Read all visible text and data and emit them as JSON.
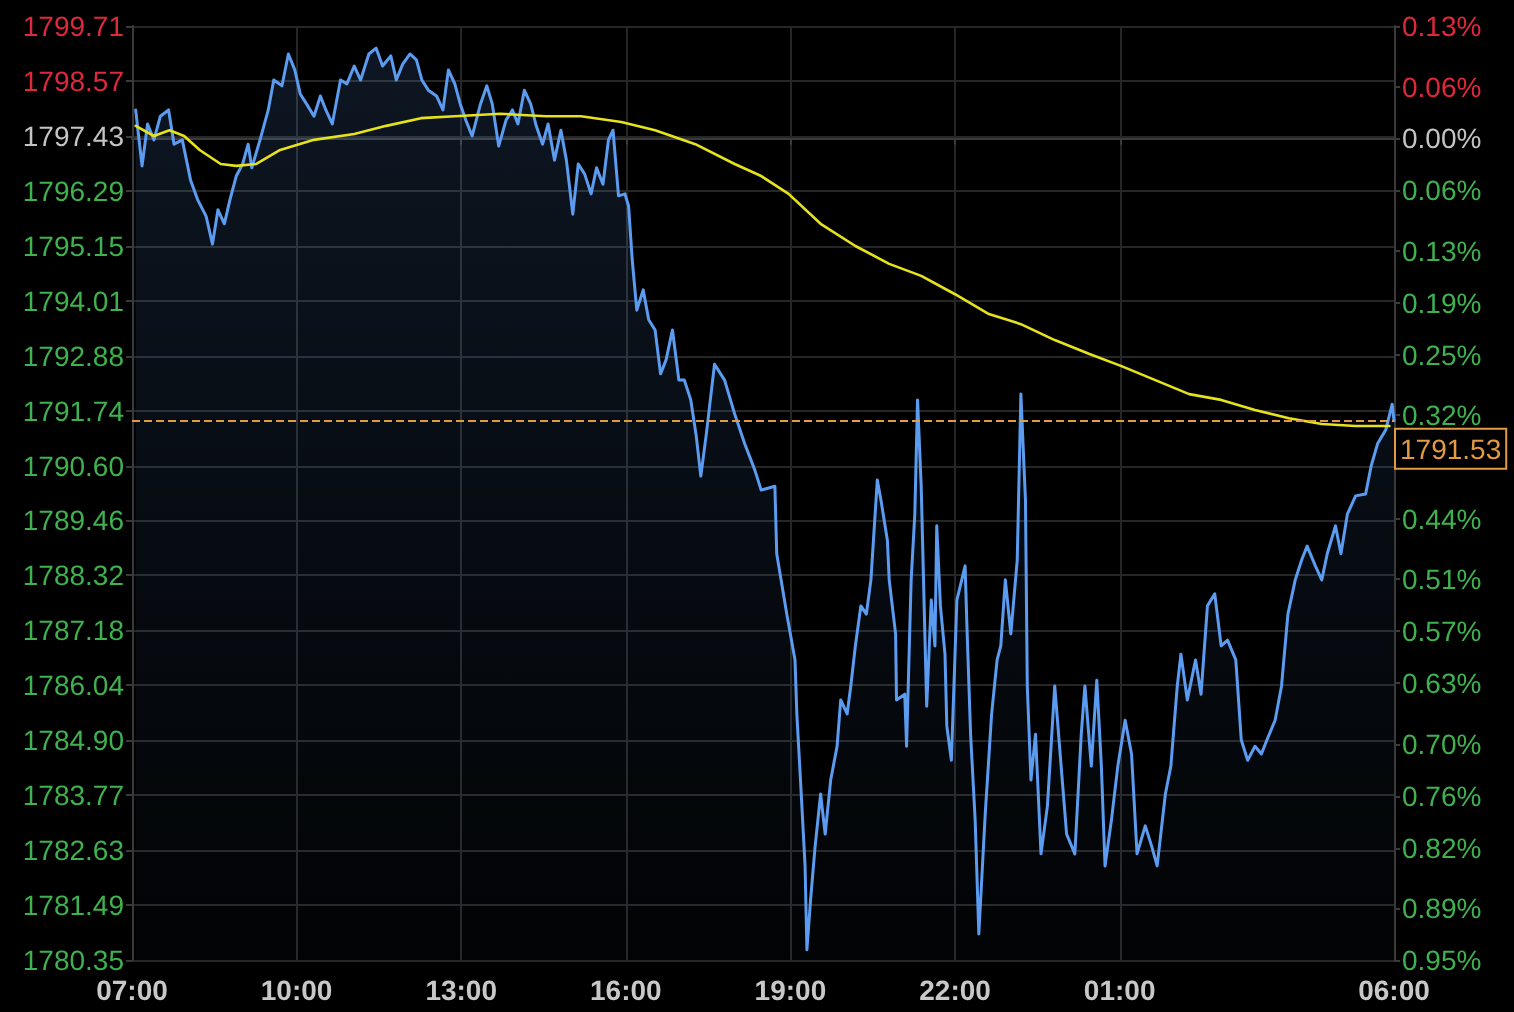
{
  "chart_data": {
    "type": "area",
    "grid": true,
    "xlim": [
      "--01-01T07:00",
      "--01-02T06:00"
    ],
    "xticks": [
      {
        "value": "--01-01T07:00",
        "label": "07:00"
      },
      {
        "value": "--01-01T10:00",
        "label": "10:00"
      },
      {
        "value": "--01-01T13:00",
        "label": "13:00"
      },
      {
        "value": "--01-01T16:00",
        "label": "16:00"
      },
      {
        "value": "--01-01T19:00",
        "label": "19:00"
      },
      {
        "value": "--01-01T22:00",
        "label": "22:00"
      },
      {
        "value": "--01-02T01:00",
        "label": "01:00"
      },
      {
        "value": "--01-02T06:00",
        "label": "06:00"
      }
    ],
    "ylim": [
      1780.35,
      1799.71
    ],
    "yticks": [
      1780.35,
      1781.49,
      1782.63,
      1783.77,
      {
        "value": 1784.9,
        "label": "1784.90"
      },
      1786.04,
      1787.18,
      1788.32,
      1789.46,
      {
        "value": 1790.6,
        "label": "1790.60"
      },
      1791.74,
      1792.88,
      1794.01,
      1795.15,
      1796.29,
      1797.43,
      1798.57,
      1799.71
    ],
    "y2lim": [
      -0.95,
      0.13
    ],
    "y2ticks": [
      {
        "value": -0.95,
        "label": "0.95%"
      },
      {
        "value": -0.89,
        "label": "0.89%"
      },
      {
        "value": -0.82,
        "label": "0.82%"
      },
      {
        "value": -0.76,
        "label": "0.76%"
      },
      {
        "value": -0.7,
        "label": "0.70%"
      },
      {
        "value": -0.63,
        "label": "0.63%"
      },
      {
        "value": -0.57,
        "label": "0.57%"
      },
      {
        "value": -0.51,
        "label": "0.51%"
      },
      {
        "value": -0.44,
        "label": "0.44%"
      },
      {
        "value": -0.38,
        "label": null
      },
      {
        "value": -0.32,
        "label": "0.32%"
      },
      {
        "value": -0.25,
        "label": "0.25%"
      },
      {
        "value": -0.19,
        "label": "0.19%"
      },
      {
        "value": -0.13,
        "label": "0.13%"
      },
      {
        "value": -0.06,
        "label": "0.06%"
      },
      {
        "value": 0,
        "label": "0.00%"
      },
      {
        "value": 0.06,
        "label": "0.06%"
      },
      {
        "value": 0.13,
        "label": "0.13%"
      }
    ],
    "ref_lines": [
      {
        "axis": "y",
        "value": 1791.53,
        "label": "1791.53",
        "color": "#e39a45",
        "line_style": "dashed"
      }
    ],
    "series": [
      {
        "color": "#5b9cf0",
        "x": [
          "--01-01T07:04",
          "--01-01T07:11",
          "--01-01T07:17",
          "--01-01T07:24",
          "--01-01T07:31",
          "--01-01T07:40",
          "--01-01T07:46",
          "--01-01T07:55",
          "--01-01T08:04",
          "--01-01T08:12",
          "--01-01T08:21",
          "--01-01T08:28",
          "--01-01T08:34",
          "--01-01T08:41",
          "--01-01T08:47",
          "--01-01T08:54",
          "--01-01T09:01",
          "--01-01T09:07",
          "--01-01T09:11",
          "--01-01T09:20",
          "--01-01T09:29",
          "--01-01T09:35",
          "--01-01T09:44",
          "--01-01T09:51",
          "--01-01T09:58",
          "--01-01T10:04",
          "--01-01T10:11",
          "--01-01T10:19",
          "--01-01T10:26",
          "--01-01T10:32",
          "--01-01T10:39",
          "--01-01T10:48",
          "--01-01T10:55",
          "--01-01T11:03",
          "--01-01T11:10",
          "--01-01T11:19",
          "--01-01T11:27",
          "--01-01T11:34",
          "--01-01T11:43",
          "--01-01T11:49",
          "--01-01T11:56",
          "--01-01T12:04",
          "--01-01T12:11",
          "--01-01T12:17",
          "--01-01T12:24",
          "--01-01T12:33",
          "--01-01T12:40",
          "--01-01T12:46",
          "--01-01T12:53",
          "--01-01T12:59",
          "--01-01T13:05",
          "--01-01T13:12",
          "--01-01T13:21",
          "--01-01T13:28",
          "--01-01T13:34",
          "--01-01T13:41",
          "--01-01T13:49",
          "--01-01T13:56",
          "--01-01T14:02",
          "--01-01T14:09",
          "--01-01T14:16",
          "--01-01T14:22",
          "--01-01T14:29",
          "--01-01T14:35",
          "--01-01T14:42",
          "--01-01T14:49",
          "--01-01T14:55",
          "--01-01T15:02",
          "--01-01T15:08",
          "--01-01T15:15",
          "--01-01T15:22",
          "--01-01T15:28",
          "--01-01T15:35",
          "--01-01T15:41",
          "--01-01T15:46",
          "--01-01T15:52",
          "--01-01T15:59",
          "--01-01T16:03",
          "--01-01T16:07",
          "--01-01T16:12",
          "--01-01T16:19",
          "--01-01T16:25",
          "--01-01T16:32",
          "--01-01T16:38",
          "--01-01T16:44",
          "--01-01T16:51",
          "--01-01T16:58",
          "--01-01T17:04",
          "--01-01T17:11",
          "--01-01T17:17",
          "--01-01T17:22",
          "--01-01T17:28",
          "--01-01T17:37",
          "--01-01T17:48",
          "--01-01T17:59",
          "--01-01T18:10",
          "--01-01T18:21",
          "--01-01T18:28",
          "--01-01T18:43",
          "--01-01T18:45",
          "--01-01T18:56",
          "--01-01T19:05",
          "--01-01T19:07",
          "--01-01T19:11",
          "--01-01T19:16",
          "--01-01T19:18",
          "--01-01T19:22",
          "--01-01T19:27",
          "--01-01T19:33",
          "--01-01T19:38",
          "--01-01T19:44",
          "--01-01T19:51",
          "--01-01T19:55",
          "--01-01T20:02",
          "--01-01T20:06",
          "--01-01T20:11",
          "--01-01T20:17",
          "--01-01T20:23",
          "--01-01T20:28",
          "--01-01T20:35",
          "--01-01T20:39",
          "--01-01T20:46",
          "--01-01T20:48",
          "--01-01T20:55",
          "--01-01T20:56",
          "--01-01T21:05",
          "--01-01T21:07",
          "--01-01T21:12",
          "--01-01T21:16",
          "--01-01T21:19",
          "--01-01T21:23",
          "--01-01T21:27",
          "--01-01T21:29",
          "--01-01T21:34",
          "--01-01T21:38",
          "--01-01T21:40",
          "--01-01T21:44",
          "--01-01T21:49",
          "--01-01T21:51",
          "--01-01T21:56",
          "--01-01T22:02",
          "--01-01T22:11",
          "--01-01T22:13",
          "--01-01T22:17",
          "--01-01T22:22",
          "--01-01T22:26",
          "--01-01T22:33",
          "--01-01T22:40",
          "--01-01T22:46",
          "--01-01T22:50",
          "--01-01T22:55",
          "--01-01T23:01",
          "--01-01T23:08",
          "--01-01T23:12",
          "--01-01T23:17",
          "--01-01T23:19",
          "--01-01T23:23",
          "--01-01T23:28",
          "--01-01T23:34",
          "--01-01T23:41",
          "--01-01T23:49",
          "--01-01T23:56",
          "--01-02T00:02",
          "--01-02T00:11",
          "--01-02T00:18",
          "--01-02T00:22",
          "--01-02T00:29",
          "--01-02T00:35",
          "--01-02T00:40",
          "--01-02T00:44",
          "--01-02T00:51",
          "--01-02T00:58",
          "--01-02T01:06",
          "--01-02T01:13",
          "--01-02T01:19",
          "--01-02T01:28",
          "--01-02T01:35",
          "--01-02T01:41",
          "--01-02T01:50",
          "--01-02T01:56",
          "--01-02T02:03",
          "--01-02T02:07",
          "--01-02T02:14",
          "--01-02T02:23",
          "--01-02T02:29",
          "--01-02T02:36",
          "--01-02T02:44",
          "--01-02T02:51",
          "--01-02T02:58",
          "--01-02T03:07",
          "--01-02T03:13",
          "--01-02T03:20",
          "--01-02T03:28",
          "--01-02T03:35",
          "--01-02T03:41",
          "--01-02T03:50",
          "--01-02T03:57",
          "--01-02T04:04",
          "--01-02T04:12",
          "--01-02T04:19",
          "--01-02T04:25",
          "--01-02T04:34",
          "--01-02T04:41",
          "--01-02T04:47",
          "--01-02T04:56",
          "--01-02T05:02",
          "--01-02T05:09",
          "--01-02T05:18",
          "--01-02T05:29",
          "--01-02T05:35",
          "--01-02T05:42",
          "--01-02T05:51",
          "--01-02T05:58",
          "--01-02T06:00"
        ],
        "values": [
          1797.97,
          1796.81,
          1797.68,
          1797.35,
          1797.84,
          1797.97,
          1797.26,
          1797.35,
          1796.52,
          1796.1,
          1795.77,
          1795.19,
          1795.9,
          1795.61,
          1796.1,
          1796.6,
          1796.85,
          1797.26,
          1796.77,
          1797.35,
          1797.97,
          1798.59,
          1798.47,
          1799.13,
          1798.8,
          1798.3,
          1798.09,
          1797.84,
          1798.26,
          1797.97,
          1797.68,
          1798.59,
          1798.51,
          1798.88,
          1798.59,
          1799.13,
          1799.25,
          1798.88,
          1799.09,
          1798.59,
          1798.92,
          1799.13,
          1799.01,
          1798.59,
          1798.38,
          1798.26,
          1797.97,
          1798.8,
          1798.51,
          1798.09,
          1797.76,
          1797.43,
          1798.09,
          1798.47,
          1798.09,
          1797.22,
          1797.76,
          1797.97,
          1797.68,
          1798.38,
          1798.09,
          1797.64,
          1797.26,
          1797.68,
          1796.93,
          1797.55,
          1796.93,
          1795.81,
          1796.85,
          1796.64,
          1796.23,
          1796.77,
          1796.43,
          1797.35,
          1797.55,
          1796.19,
          1796.23,
          1795.98,
          1794.86,
          1793.82,
          1794.24,
          1793.62,
          1793.41,
          1792.5,
          1792.79,
          1793.41,
          1792.37,
          1792.37,
          1791.96,
          1791.21,
          1790.38,
          1791.25,
          1792.7,
          1792.37,
          1791.67,
          1791.05,
          1790.51,
          1790.09,
          1790.17,
          1788.77,
          1787.52,
          1786.57,
          1785.45,
          1784.08,
          1782.3,
          1780.56,
          1781.59,
          1782.71,
          1783.79,
          1782.96,
          1784.08,
          1784.78,
          1785.74,
          1785.45,
          1786.03,
          1786.86,
          1787.69,
          1787.52,
          1788.23,
          1790.3,
          1789.88,
          1789.05,
          1788.23,
          1787.11,
          1785.74,
          1785.86,
          1784.78,
          1788.23,
          1789.59,
          1791.96,
          1790.17,
          1787.11,
          1785.61,
          1787.81,
          1786.86,
          1789.35,
          1787.69,
          1786.69,
          1785.2,
          1784.49,
          1787.81,
          1788.52,
          1787.27,
          1785.03,
          1783.25,
          1780.89,
          1783.38,
          1785.45,
          1786.57,
          1786.86,
          1788.23,
          1787.11,
          1788.64,
          1792.08,
          1789.88,
          1786.03,
          1784.08,
          1785.03,
          1782.55,
          1783.54,
          1786.03,
          1784.37,
          1782.96,
          1782.55,
          1785.03,
          1786.03,
          1784.37,
          1786.15,
          1784.37,
          1782.3,
          1783.25,
          1784.37,
          1785.32,
          1784.62,
          1782.55,
          1783.13,
          1782.71,
          1782.3,
          1783.79,
          1784.37,
          1786.03,
          1786.69,
          1785.74,
          1786.57,
          1785.86,
          1787.69,
          1787.94,
          1786.86,
          1786.98,
          1786.57,
          1784.91,
          1784.49,
          1784.78,
          1784.62,
          1784.91,
          1785.32,
          1786.03,
          1787.52,
          1788.23,
          1788.64,
          1788.93,
          1788.52,
          1788.23,
          1788.77,
          1789.35,
          1788.77,
          1789.59,
          1789.97,
          1790.01,
          1790.59,
          1791.05,
          1791.34,
          1791.87,
          1791.53
        ]
      },
      {
        "type": "line",
        "color": "#e6e21c",
        "x": [
          "--01-01T07:04",
          "--01-01T07:24",
          "--01-01T07:41",
          "--01-01T07:57",
          "--01-01T08:14",
          "--01-01T08:37",
          "--01-01T08:54",
          "--01-01T09:16",
          "--01-01T09:42",
          "--01-01T10:19",
          "--01-01T11:03",
          "--01-01T11:38",
          "--01-01T12:16",
          "--01-01T12:53",
          "--01-01T13:43",
          "--01-01T14:33",
          "--01-01T15:11",
          "--01-01T15:55",
          "--01-01T16:32",
          "--01-01T17:16",
          "--01-01T17:59",
          "--01-01T18:28",
          "--01-01T18:58",
          "--01-01T19:33",
          "--01-01T20:11",
          "--01-01T20:48",
          "--01-01T21:23",
          "--01-01T22:00",
          "--01-01T22:37",
          "--01-01T23:12",
          "--01-01T23:49",
          "--01-02T00:27",
          "--01-02T01:02",
          "--01-02T01:39",
          "--01-02T02:16",
          "--01-02T02:51",
          "--01-02T03:28",
          "--01-02T04:05",
          "--01-02T04:41",
          "--01-02T05:18",
          "--01-02T05:55"
        ],
        "values": [
          1797.64,
          1797.43,
          1797.55,
          1797.43,
          1797.14,
          1796.85,
          1796.81,
          1796.85,
          1797.14,
          1797.35,
          1797.47,
          1797.64,
          1797.8,
          1797.84,
          1797.89,
          1797.84,
          1797.84,
          1797.72,
          1797.55,
          1797.26,
          1796.85,
          1796.6,
          1796.23,
          1795.61,
          1795.15,
          1794.78,
          1794.53,
          1794.15,
          1793.74,
          1793.53,
          1793.2,
          1792.91,
          1792.66,
          1792.37,
          1792.08,
          1791.96,
          1791.75,
          1791.58,
          1791.46,
          1791.42,
          1791.42
        ]
      }
    ]
  }
}
